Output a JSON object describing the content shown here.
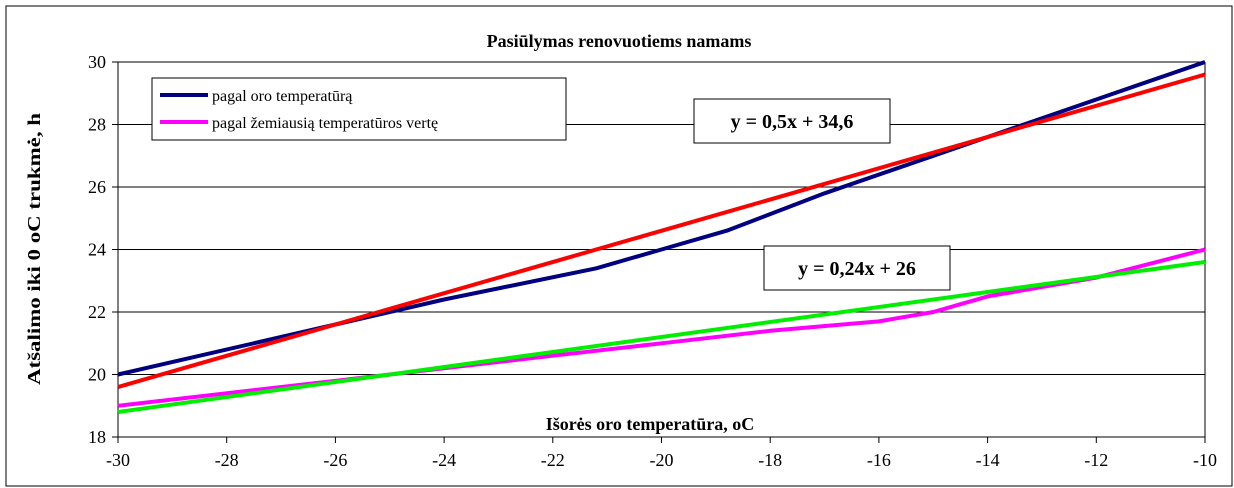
{
  "chart_data": {
    "type": "line",
    "title": "Pasiūlymas renovuotiems namams",
    "xlabel": "Išorės oro temperatūra, oC",
    "ylabel": "Atšalimo iki 0 oC trukmė, h",
    "xlim": [
      -30,
      -10
    ],
    "ylim": [
      18,
      30
    ],
    "x_ticks": [
      -30,
      -28,
      -26,
      -24,
      -22,
      -20,
      -18,
      -16,
      -14,
      -12,
      -10
    ],
    "y_ticks": [
      18,
      20,
      22,
      24,
      26,
      28,
      30
    ],
    "grid": "horizontal",
    "legend_position": "top-left",
    "series": [
      {
        "name": "pagal oro temperatūrą",
        "color": "#000080",
        "x": [
          -30,
          -26,
          -24,
          -21.2,
          -20,
          -18.8,
          -17,
          -15,
          -14,
          -12,
          -10
        ],
        "y": [
          20,
          21.6,
          22.4,
          23.4,
          24,
          24.6,
          25.8,
          27,
          27.6,
          28.8,
          30
        ]
      },
      {
        "name": "pagal žemiausią temperatūros vertę",
        "color": "#ff00ff",
        "x": [
          -30,
          -26,
          -24,
          -22,
          -20,
          -18,
          -16,
          -15,
          -14,
          -12,
          -10
        ],
        "y": [
          19,
          19.8,
          20.2,
          20.6,
          21,
          21.4,
          21.7,
          22,
          22.5,
          23.1,
          24
        ]
      },
      {
        "color": "#ff0000",
        "x": [
          -30,
          -10
        ],
        "y": [
          19.6,
          29.6
        ]
      },
      {
        "color": "#00ee00",
        "x": [
          -30,
          -10
        ],
        "y": [
          18.8,
          23.6
        ]
      }
    ],
    "annotations": [
      {
        "text": "y = 0,5x + 34,6"
      },
      {
        "text": "y = 0,24x + 26"
      }
    ]
  }
}
